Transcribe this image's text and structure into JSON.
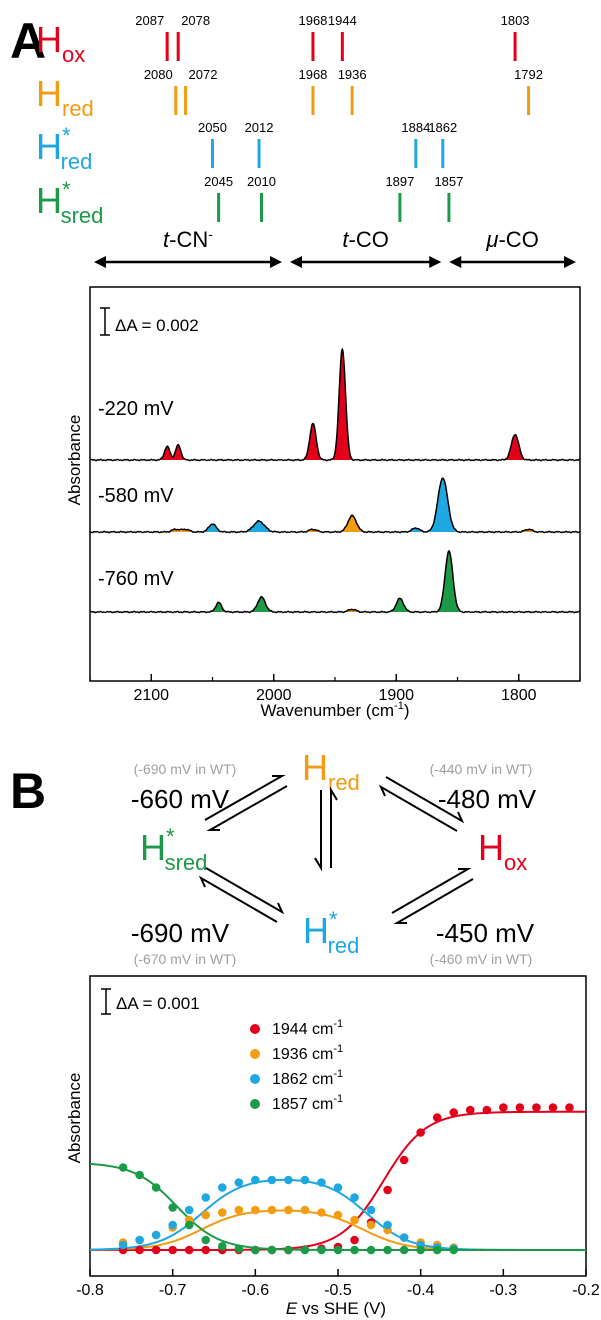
{
  "panel_a": {
    "letter": "A",
    "species": [
      {
        "main": "H",
        "sub": "ox",
        "sup": "",
        "color": "#e3001b",
        "peaks": [
          "2087",
          "2078",
          "1968",
          "1944",
          "1803"
        ]
      },
      {
        "main": "H",
        "sub": "red",
        "sup": "",
        "color": "#f39c12",
        "peaks": [
          "2080",
          "2072",
          "1968",
          "1936",
          "1792"
        ]
      },
      {
        "main": "H",
        "sub": "red",
        "sup": "*",
        "color": "#1ea7e1",
        "peaks": [
          "2050",
          "2012",
          "1884",
          "1862"
        ]
      },
      {
        "main": "H",
        "sub": "sred",
        "sup": "*",
        "color": "#1b9a48",
        "peaks": [
          "2045",
          "2010",
          "1897",
          "1857"
        ]
      }
    ],
    "regions": [
      {
        "prefix": "t",
        "label": "-CN",
        "sup": "-",
        "from": 2150,
        "to": 1990
      },
      {
        "prefix": "t",
        "label": "-CO",
        "sup": "",
        "from": 1990,
        "to": 1860
      },
      {
        "prefix": "μ",
        "label": "-CO",
        "sup": "",
        "from": 1860,
        "to": 1750
      }
    ],
    "scale_bar": "ΔA = 0.002",
    "ylabel": "Absorbance",
    "xlabel": "Wavenumber (cm",
    "xlabel_sup": "-1",
    "xlabel_close": ")",
    "xlim": [
      2150,
      1750
    ],
    "xticks": [
      "2100",
      "2000",
      "1900",
      "1800"
    ],
    "traces": [
      {
        "label": "-220 mV",
        "peaks": [
          {
            "x": 2087,
            "h": 0.001,
            "w": 2.2,
            "color": "#e3001b"
          },
          {
            "x": 2078,
            "h": 0.0011,
            "w": 2.2,
            "color": "#e3001b"
          },
          {
            "x": 1968,
            "h": 0.0027,
            "w": 2.6,
            "color": "#e3001b"
          },
          {
            "x": 1944,
            "h": 0.0082,
            "w": 2.6,
            "color": "#e3001b"
          },
          {
            "x": 1803,
            "h": 0.0019,
            "w": 3.0,
            "color": "#e3001b"
          }
        ]
      },
      {
        "label": "-580 mV",
        "peaks": [
          {
            "x": 2080,
            "h": 0.0002,
            "w": 3.0,
            "color": "#f39c12"
          },
          {
            "x": 2072,
            "h": 0.0002,
            "w": 3.0,
            "color": "#f39c12"
          },
          {
            "x": 2050,
            "h": 0.0006,
            "w": 3.0,
            "color": "#1ea7e1"
          },
          {
            "x": 2012,
            "h": 0.0008,
            "w": 4.5,
            "color": "#1ea7e1"
          },
          {
            "x": 1968,
            "h": 0.0002,
            "w": 3.0,
            "color": "#f39c12"
          },
          {
            "x": 1936,
            "h": 0.0012,
            "w": 3.5,
            "color": "#f39c12"
          },
          {
            "x": 1884,
            "h": 0.0003,
            "w": 3.0,
            "color": "#1ea7e1"
          },
          {
            "x": 1862,
            "h": 0.004,
            "w": 4.0,
            "color": "#1ea7e1"
          },
          {
            "x": 1792,
            "h": 0.0002,
            "w": 3.0,
            "color": "#f39c12"
          }
        ]
      },
      {
        "label": "-760 mV",
        "peaks": [
          {
            "x": 2045,
            "h": 0.0007,
            "w": 2.4,
            "color": "#1b9a48"
          },
          {
            "x": 2010,
            "h": 0.0011,
            "w": 3.2,
            "color": "#1b9a48"
          },
          {
            "x": 1936,
            "h": 0.0002,
            "w": 3.0,
            "color": "#f39c12"
          },
          {
            "x": 1897,
            "h": 0.001,
            "w": 3.0,
            "color": "#1b9a48"
          },
          {
            "x": 1857,
            "h": 0.0045,
            "w": 3.2,
            "color": "#1b9a48"
          }
        ]
      }
    ]
  },
  "panel_b": {
    "letter": "B",
    "states": {
      "hred": {
        "main": "H",
        "sub": "red",
        "sup": "",
        "color": "#f39c12"
      },
      "hsred": {
        "main": "H",
        "sub": "sred",
        "sup": "*",
        "color": "#1b9a48"
      },
      "hox": {
        "main": "H",
        "sub": "ox",
        "sup": "",
        "color": "#e3001b"
      },
      "hred_star": {
        "main": "H",
        "sub": "red",
        "sup": "*",
        "color": "#1ea7e1"
      }
    },
    "potentials": {
      "top_left": "-660 mV",
      "top_left_wt": "(-690 mV in WT)",
      "top_right": "-480 mV",
      "top_right_wt": "(-440 mV in WT)",
      "bottom_left": "-690 mV",
      "bottom_left_wt": "(-670 mV in WT)",
      "bottom_right": "-450 mV",
      "bottom_right_wt": "(-460 mV in WT)"
    }
  },
  "chart_data": {
    "type": "scatter",
    "scale_bar": "ΔA = 0.001",
    "ylabel": "Absorbance",
    "xlabel_italic": "E",
    "xlabel_rest": " vs SHE (V)",
    "xlim": [
      -0.8,
      -0.2
    ],
    "xticks": [
      "-0.8",
      "-0.7",
      "-0.6",
      "-0.5",
      "-0.4",
      "-0.3",
      "-0.2"
    ],
    "legend_position": "top-center",
    "series": [
      {
        "name": "1944 cm",
        "name_sup": "-1",
        "color": "#e3001b",
        "x": [
          -0.76,
          -0.74,
          -0.72,
          -0.7,
          -0.68,
          -0.66,
          -0.64,
          -0.62,
          -0.6,
          -0.58,
          -0.56,
          -0.54,
          -0.52,
          -0.5,
          -0.48,
          -0.46,
          -0.44,
          -0.42,
          -0.4,
          -0.38,
          -0.36,
          -0.34,
          -0.32,
          -0.3,
          -0.28,
          -0.26,
          -0.24,
          -0.22
        ],
        "y": [
          0,
          0,
          0,
          0,
          0,
          0,
          0,
          0,
          0,
          0,
          0,
          2e-05,
          5e-05,
          0.00012,
          0.0004,
          0.0011,
          0.0024,
          0.0036,
          0.0047,
          0.0053,
          0.0055,
          0.0056,
          0.0056,
          0.0057,
          0.0057,
          0.0057,
          0.0057,
          0.0057
        ],
        "fit": {
          "type": "sigmoid_up",
          "e0": -0.445,
          "amp": 0.00553,
          "n": 1
        }
      },
      {
        "name": "1936 cm",
        "name_sup": "-1",
        "color": "#f39c12",
        "x": [
          -0.76,
          -0.74,
          -0.72,
          -0.7,
          -0.68,
          -0.66,
          -0.64,
          -0.62,
          -0.6,
          -0.58,
          -0.56,
          -0.54,
          -0.52,
          -0.5,
          -0.48,
          -0.46,
          -0.44,
          -0.42,
          -0.4,
          -0.38,
          -0.36
        ],
        "y": [
          0.0003,
          0.0004,
          0.0006,
          0.0009,
          0.0012,
          0.0014,
          0.0015,
          0.0016,
          0.0016,
          0.0016,
          0.0016,
          0.0016,
          0.0015,
          0.0014,
          0.0012,
          0.001,
          0.0008,
          0.0005,
          0.0003,
          0.0002,
          0.0001
        ],
        "fit": {
          "type": "bell",
          "amp": 0.00165,
          "e_low": -0.665,
          "e_high": -0.47,
          "n": 1
        }
      },
      {
        "name": "1862 cm",
        "name_sup": "-1",
        "color": "#1ea7e1",
        "x": [
          -0.76,
          -0.74,
          -0.72,
          -0.7,
          -0.68,
          -0.66,
          -0.64,
          -0.62,
          -0.6,
          -0.58,
          -0.56,
          -0.54,
          -0.52,
          -0.5,
          -0.48,
          -0.46,
          -0.44,
          -0.42,
          -0.4,
          -0.38,
          -0.36
        ],
        "y": [
          0.0002,
          0.0004,
          0.0006,
          0.001,
          0.0016,
          0.0021,
          0.0025,
          0.0027,
          0.0028,
          0.0028,
          0.0028,
          0.0028,
          0.0027,
          0.0025,
          0.0021,
          0.0016,
          0.001,
          0.0005,
          0.0002,
          0.0001,
          5e-05
        ],
        "fit": {
          "type": "bell",
          "amp": 0.00292,
          "e_low": -0.665,
          "e_high": -0.465,
          "n": 1
        }
      },
      {
        "name": "1857 cm",
        "name_sup": "-1",
        "color": "#1b9a48",
        "x": [
          -0.76,
          -0.74,
          -0.72,
          -0.7,
          -0.68,
          -0.66,
          -0.64,
          -0.62,
          -0.6,
          -0.58,
          -0.56,
          -0.54,
          -0.52,
          -0.5,
          -0.48,
          -0.46,
          -0.44,
          -0.42,
          -0.4,
          -0.38,
          -0.36
        ],
        "y": [
          0.0033,
          0.003,
          0.0025,
          0.0017,
          0.001,
          0.0004,
          0.00015,
          5e-05,
          0,
          0,
          0,
          0,
          0,
          0,
          0,
          0,
          0,
          0,
          0,
          0,
          0
        ],
        "fit": {
          "type": "sigmoid_down",
          "e0": -0.695,
          "amp": 0.0035,
          "n": 1
        }
      }
    ]
  }
}
